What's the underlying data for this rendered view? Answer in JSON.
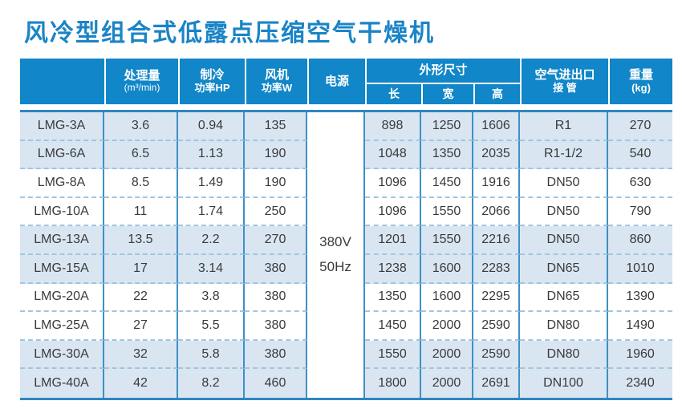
{
  "title": "风冷型组合式低露点压缩空气干燥机",
  "colors": {
    "title_blue": "#1b84c6",
    "header_bg": "#1186c8",
    "row_shade": "#d9e6f2",
    "solid_border": "#3e8fc6",
    "dashed_border": "#9fc6e0",
    "body_text": "#3a3a3a"
  },
  "table": {
    "headers": {
      "model": "",
      "capacity_l1": "处理量",
      "capacity_l2": "(m³/min)",
      "cooling_l1": "制冷",
      "cooling_l2": "功率HP",
      "fan_l1": "风机",
      "fan_l2": "功率W",
      "power": "电源",
      "dimensions": "外形尺寸",
      "dim_length": "长",
      "dim_width": "宽",
      "dim_height": "高",
      "pipe_l1": "空气进出口",
      "pipe_l2": "接 管",
      "weight_l1": "重量",
      "weight_l2": "(kg)"
    },
    "power_value": {
      "line1": "380V",
      "line2": "50Hz"
    },
    "field_order": [
      "model",
      "capacity",
      "cooling",
      "fan",
      "length",
      "width",
      "height",
      "pipe",
      "weight"
    ],
    "rows": [
      {
        "model": "LMG-3A",
        "capacity": "3.6",
        "cooling": "0.94",
        "fan": "135",
        "length": "898",
        "width": "1250",
        "height": "1606",
        "pipe": "R1",
        "weight": "270"
      },
      {
        "model": "LMG-6A",
        "capacity": "6.5",
        "cooling": "1.13",
        "fan": "190",
        "length": "1048",
        "width": "1350",
        "height": "2035",
        "pipe": "R1-1/2",
        "weight": "540"
      },
      {
        "model": "LMG-8A",
        "capacity": "8.5",
        "cooling": "1.49",
        "fan": "190",
        "length": "1096",
        "width": "1450",
        "height": "1916",
        "pipe": "DN50",
        "weight": "630"
      },
      {
        "model": "LMG-10A",
        "capacity": "11",
        "cooling": "1.74",
        "fan": "250",
        "length": "1096",
        "width": "1550",
        "height": "2066",
        "pipe": "DN50",
        "weight": "790"
      },
      {
        "model": "LMG-13A",
        "capacity": "13.5",
        "cooling": "2.2",
        "fan": "270",
        "length": "1201",
        "width": "1550",
        "height": "2216",
        "pipe": "DN50",
        "weight": "860"
      },
      {
        "model": "LMG-15A",
        "capacity": "17",
        "cooling": "3.14",
        "fan": "380",
        "length": "1238",
        "width": "1600",
        "height": "2283",
        "pipe": "DN65",
        "weight": "1010"
      },
      {
        "model": "LMG-20A",
        "capacity": "22",
        "cooling": "3.8",
        "fan": "380",
        "length": "1350",
        "width": "1600",
        "height": "2295",
        "pipe": "DN65",
        "weight": "1390"
      },
      {
        "model": "LMG-25A",
        "capacity": "27",
        "cooling": "5.5",
        "fan": "380",
        "length": "1450",
        "width": "2000",
        "height": "2590",
        "pipe": "DN80",
        "weight": "1490"
      },
      {
        "model": "LMG-30A",
        "capacity": "32",
        "cooling": "5.8",
        "fan": "380",
        "length": "1550",
        "width": "2000",
        "height": "2590",
        "pipe": "DN80",
        "weight": "1960"
      },
      {
        "model": "LMG-40A",
        "capacity": "42",
        "cooling": "8.2",
        "fan": "460",
        "length": "1800",
        "width": "2000",
        "height": "2691",
        "pipe": "DN100",
        "weight": "2340"
      }
    ]
  }
}
